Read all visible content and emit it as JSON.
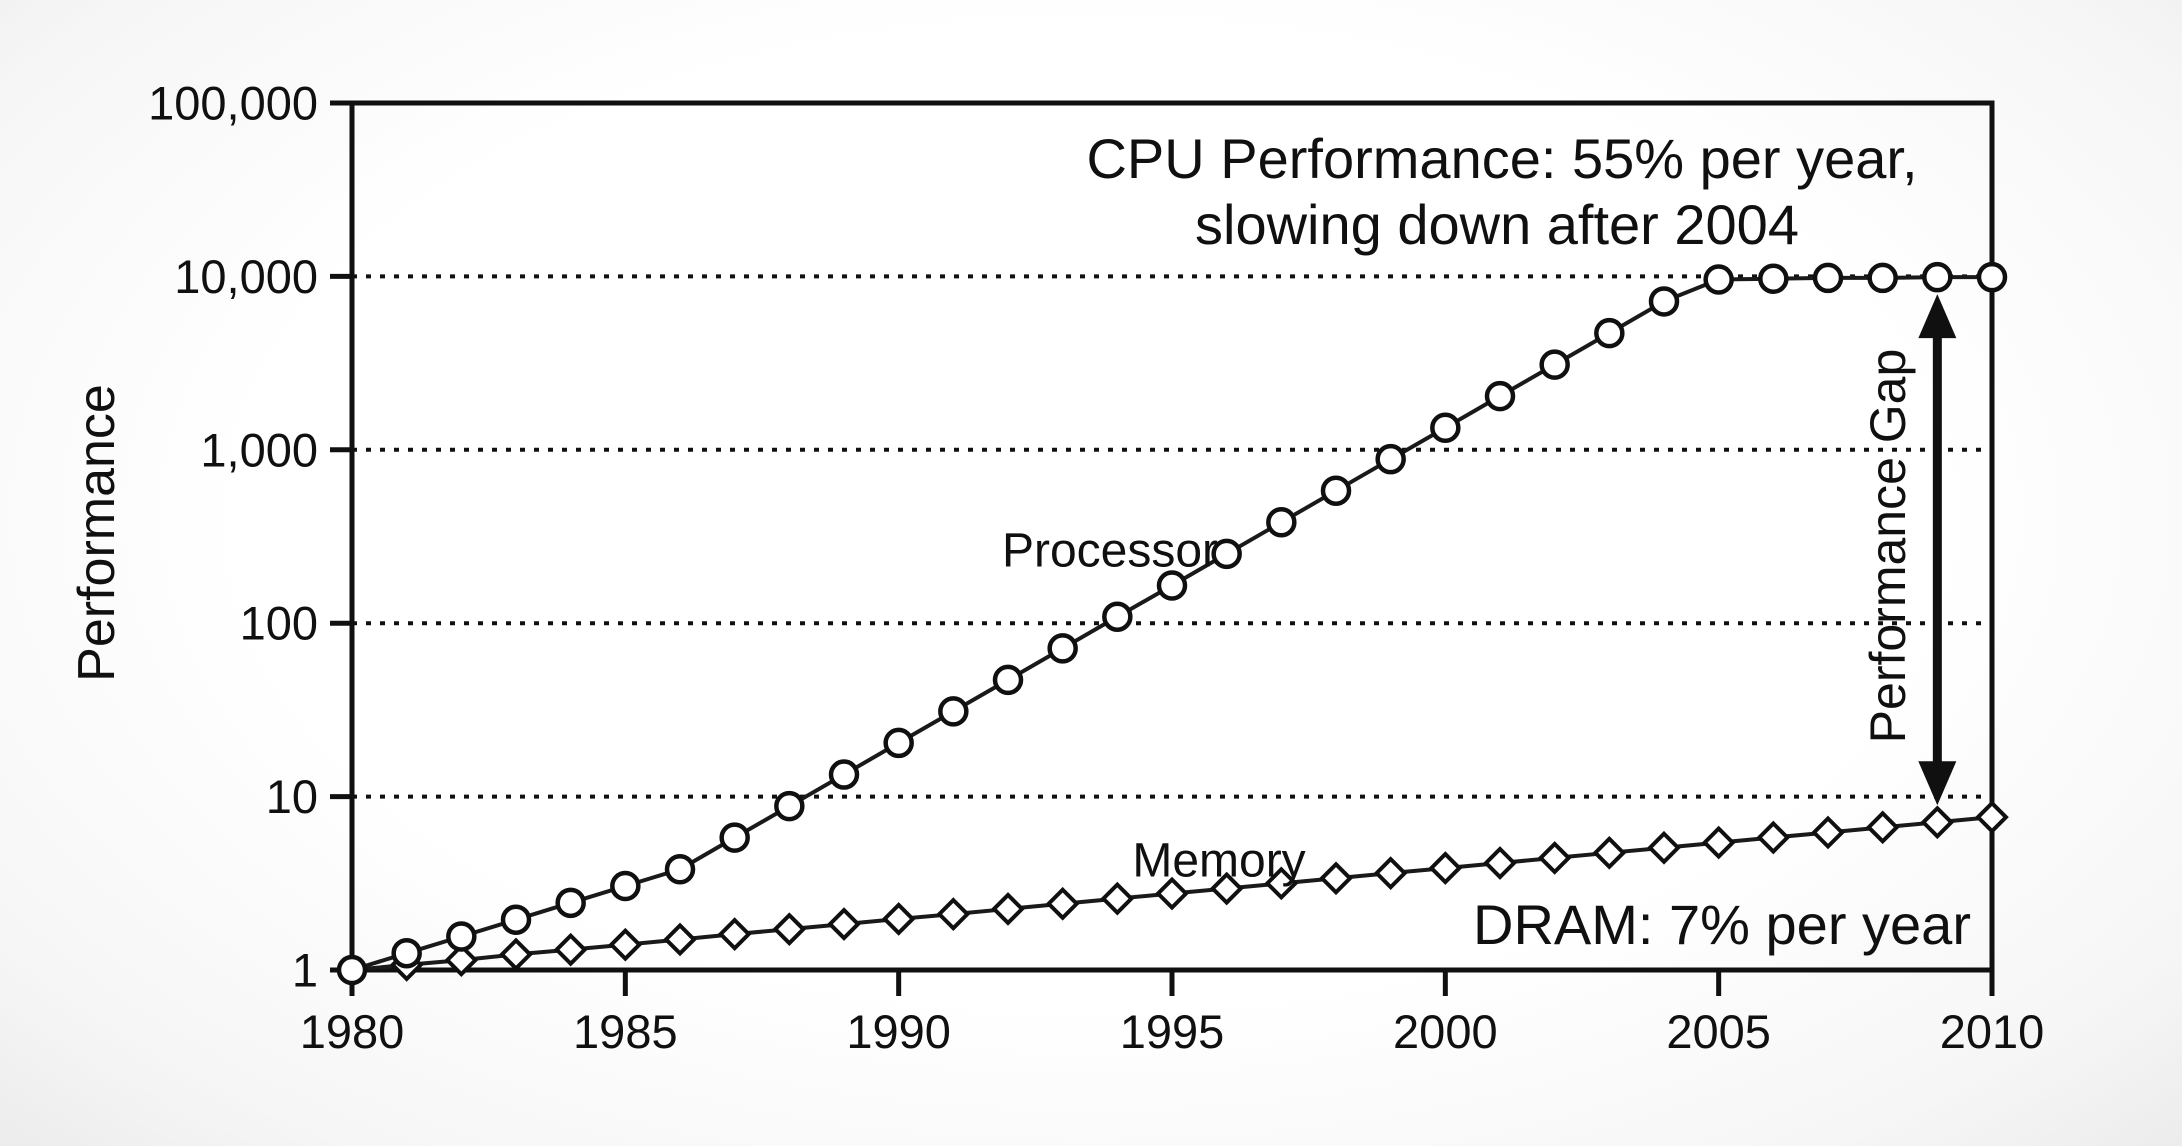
{
  "chart_data": {
    "type": "line",
    "title": "",
    "xlabel": "",
    "ylabel": "Performance",
    "y_scale": "log",
    "xlim": [
      1980,
      2010
    ],
    "ylim": [
      1,
      100000
    ],
    "grid": "horizontal dotted gridlines at decades 10..10,000; solid box frame",
    "legend_position": "none (inline series labels)",
    "grid_values": [
      10,
      100,
      1000,
      10000
    ],
    "x_ticks": [
      {
        "value": 1980,
        "label": "1980"
      },
      {
        "value": 1985,
        "label": "1985"
      },
      {
        "value": 1990,
        "label": "1990"
      },
      {
        "value": 1995,
        "label": "1995"
      },
      {
        "value": 2000,
        "label": "2000"
      },
      {
        "value": 2005,
        "label": "2005"
      },
      {
        "value": 2010,
        "label": "2010"
      }
    ],
    "y_ticks": [
      {
        "value": 1,
        "label": "1"
      },
      {
        "value": 10,
        "label": "10"
      },
      {
        "value": 100,
        "label": "100"
      },
      {
        "value": 1000,
        "label": "1,000"
      },
      {
        "value": 10000,
        "label": "10,000"
      },
      {
        "value": 100000,
        "label": "100,000"
      }
    ],
    "x": [
      1980,
      1981,
      1982,
      1983,
      1984,
      1985,
      1986,
      1987,
      1988,
      1989,
      1990,
      1991,
      1992,
      1993,
      1994,
      1995,
      1996,
      1997,
      1998,
      1999,
      2000,
      2001,
      2002,
      2003,
      2004,
      2005,
      2006,
      2007,
      2008,
      2009,
      2010
    ],
    "series": [
      {
        "name": "Processor",
        "marker": "circle",
        "growth_note": "55% per year until 2004, then slowing",
        "values": [
          1,
          1.25,
          1.56,
          1.95,
          2.44,
          3.05,
          3.81,
          5.8,
          8.81,
          13.4,
          20.4,
          31,
          47.1,
          71.6,
          109,
          165,
          251,
          382,
          581,
          883,
          1340,
          2040,
          3100,
          4710,
          7170,
          9600,
          9700,
          9800,
          9800,
          9900,
          9900
        ]
      },
      {
        "name": "Memory",
        "marker": "diamond",
        "growth_note": "DRAM 7% per year",
        "values": [
          1.0,
          1.07,
          1.14,
          1.23,
          1.31,
          1.4,
          1.5,
          1.61,
          1.72,
          1.84,
          1.97,
          2.1,
          2.25,
          2.41,
          2.58,
          2.76,
          2.95,
          3.16,
          3.38,
          3.62,
          3.87,
          4.14,
          4.43,
          4.74,
          5.07,
          5.43,
          5.81,
          6.21,
          6.65,
          7.11,
          7.61
        ]
      }
    ],
    "annotations": {
      "cpu_line1": "CPU Performance: 55% per year,",
      "cpu_line2": "slowing down after 2004",
      "dram": "DRAM: 7% per year",
      "processor_label": "Processor",
      "memory_label": "Memory",
      "gap_label": "Performance Gap",
      "gap_year": 2009
    },
    "colors": {
      "foreground": "#101010",
      "line": "#1a1a1a",
      "marker_fill": "#ffffff",
      "background": "#fbfbfb"
    }
  }
}
